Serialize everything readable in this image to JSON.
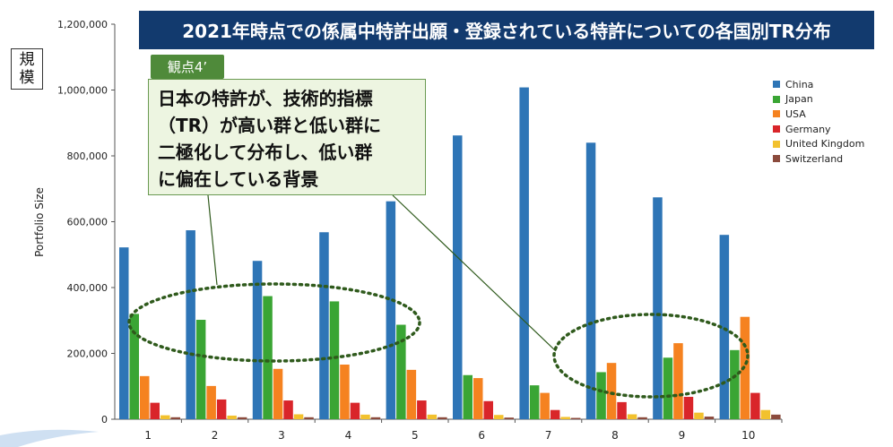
{
  "title": "2021年時点での係属中特許出願・登録されている特許についての各国別TR分布",
  "scale_label": [
    "規",
    "模"
  ],
  "callout": {
    "tag": "観点4’",
    "lines": [
      "日本の特許が、技術的指標",
      "（TR）が高い群と低い群に",
      "二極化して分布し、低い群",
      "に偏在している背景"
    ]
  },
  "chart_data": {
    "type": "bar",
    "title": "",
    "xlabel": "",
    "ylabel": "Portfolio Size",
    "categories": [
      "1",
      "2",
      "3",
      "4",
      "5",
      "6",
      "7",
      "8",
      "9",
      "10"
    ],
    "ylim": [
      0,
      1200000
    ],
    "yticks": [
      "0",
      "200,000",
      "400,000",
      "600,000",
      "800,000",
      "1,000,000",
      "1,200,000"
    ],
    "grid": false,
    "legend_position": "right",
    "series": [
      {
        "name": "China",
        "color": "#2e75b6",
        "values": [
          522000,
          574000,
          481000,
          568000,
          662000,
          862000,
          1008000,
          840000,
          674000,
          560000
        ]
      },
      {
        "name": "Japan",
        "color": "#3aa534",
        "values": [
          320000,
          302000,
          374000,
          358000,
          287000,
          134000,
          103000,
          143000,
          187000,
          210000
        ]
      },
      {
        "name": "USA",
        "color": "#f58220",
        "values": [
          131000,
          101000,
          153000,
          166000,
          150000,
          125000,
          80000,
          171000,
          231000,
          311000
        ]
      },
      {
        "name": "Germany",
        "color": "#d9252a",
        "values": [
          50000,
          60000,
          57000,
          50000,
          57000,
          55000,
          28000,
          52000,
          68000,
          80000
        ]
      },
      {
        "name": "United Kingdom",
        "color": "#f2c12e",
        "values": [
          12000,
          11000,
          15000,
          14000,
          14000,
          13000,
          7000,
          15000,
          20000,
          28000
        ]
      },
      {
        "name": "Switzerland",
        "color": "#8b4a3c",
        "values": [
          6000,
          6000,
          6000,
          6000,
          6000,
          5000,
          4000,
          6000,
          8000,
          14000
        ]
      }
    ]
  }
}
